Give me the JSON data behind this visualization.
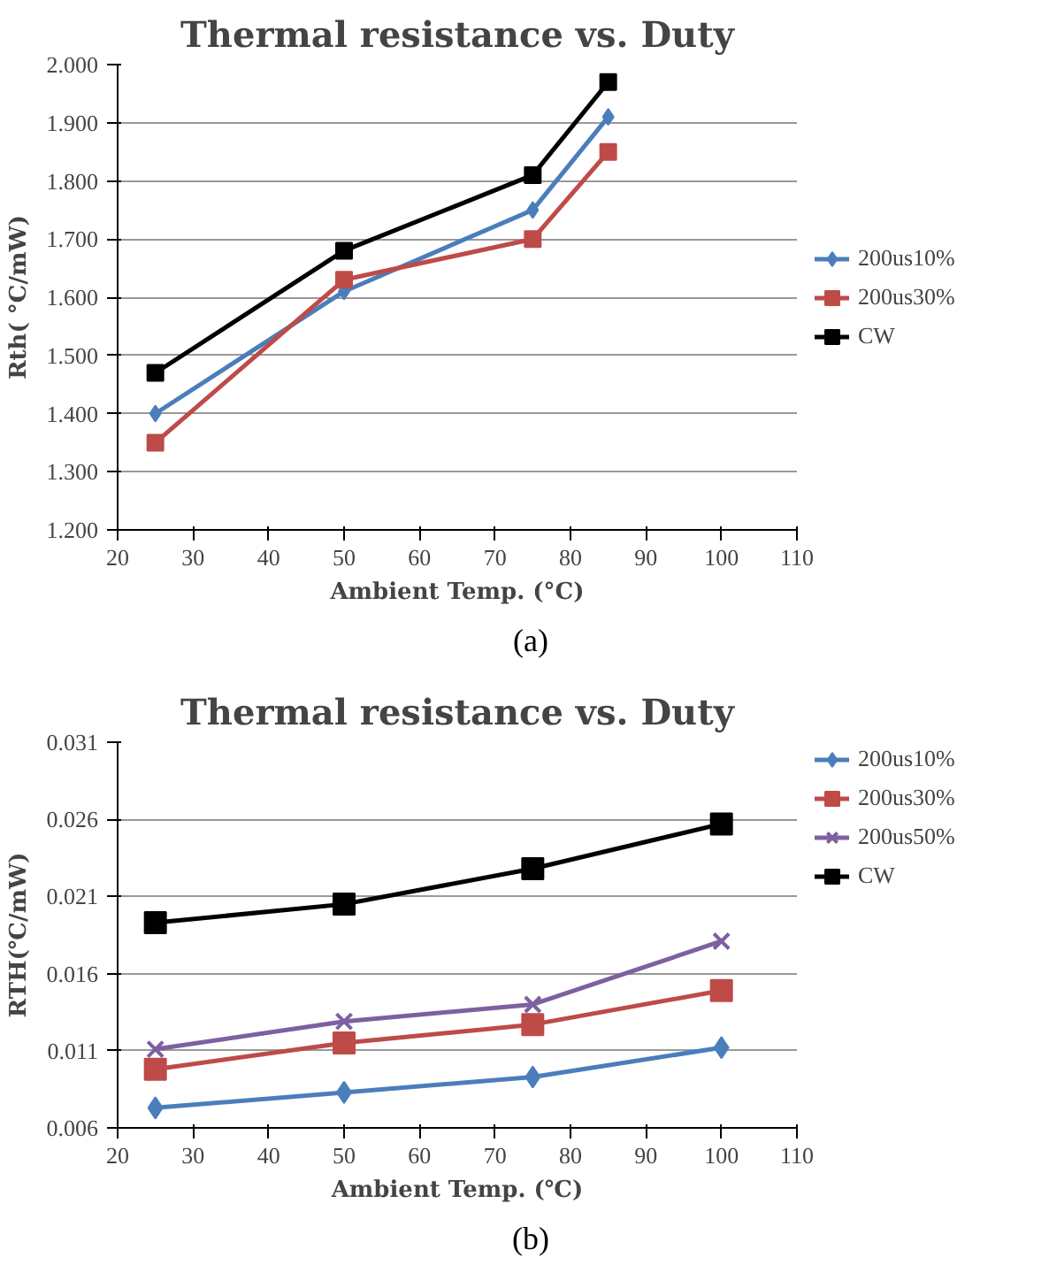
{
  "chart_data": [
    {
      "type": "line",
      "title": "Thermal resistance vs. Duty",
      "xlabel": "Ambient Temp. (°C)",
      "ylabel": "Rth( °C/mW)",
      "x": [
        25,
        50,
        75,
        85
      ],
      "series": [
        {
          "name": "200us10%",
          "color": "#4a7ebb",
          "marker": "diamond",
          "values": [
            1.4,
            1.61,
            1.75,
            1.91
          ]
        },
        {
          "name": "200us30%",
          "color": "#be4b48",
          "marker": "square",
          "values": [
            1.35,
            1.63,
            1.7,
            1.85
          ]
        },
        {
          "name": "CW",
          "color": "#000000",
          "marker": "square",
          "values": [
            1.47,
            1.68,
            1.81,
            1.97
          ]
        }
      ],
      "xlim": [
        20,
        110
      ],
      "xticks": [
        20,
        30,
        40,
        50,
        60,
        70,
        80,
        90,
        100,
        110
      ],
      "ylim": [
        1.2,
        2.0
      ],
      "yticks": [
        {
          "value": 1.2,
          "label": "1.200"
        },
        {
          "value": 1.3,
          "label": "1.300"
        },
        {
          "value": 1.4,
          "label": "1.400"
        },
        {
          "value": 1.5,
          "label": "1.500"
        },
        {
          "value": 1.6,
          "label": "1.600"
        },
        {
          "value": 1.7,
          "label": "1.700"
        },
        {
          "value": 1.8,
          "label": "1.800"
        },
        {
          "value": 1.9,
          "label": "1.900"
        },
        {
          "value": 2.0,
          "label": "2.000"
        }
      ],
      "grid": "y",
      "legend": "right",
      "annotations": [
        "(a)"
      ]
    },
    {
      "type": "line",
      "title": "Thermal resistance vs. Duty",
      "xlabel": "Ambient Temp. (℃)",
      "ylabel": "RTH(℃/mW)",
      "x": [
        25,
        50,
        75,
        100
      ],
      "series": [
        {
          "name": "200us10%",
          "color": "#4a7ebb",
          "marker": "diamond",
          "values": [
            0.0073,
            0.0083,
            0.0093,
            0.0112
          ]
        },
        {
          "name": "200us30%",
          "color": "#be4b48",
          "marker": "square",
          "values": [
            0.0098,
            0.0115,
            0.0127,
            0.0149
          ]
        },
        {
          "name": "200us50%",
          "color": "#7d60a0",
          "marker": "cross",
          "values": [
            0.0111,
            0.0129,
            0.014,
            0.0181
          ]
        },
        {
          "name": "CW",
          "color": "#000000",
          "marker": "square",
          "values": [
            0.0193,
            0.0205,
            0.0228,
            0.0257
          ]
        }
      ],
      "xlim": [
        20,
        110
      ],
      "xticks": [
        20,
        30,
        40,
        50,
        60,
        70,
        80,
        90,
        100,
        110
      ],
      "ylim": [
        0.006,
        0.031
      ],
      "yticks": [
        0.006,
        0.011,
        0.016,
        0.021,
        0.026,
        0.031
      ],
      "grid": "y",
      "legend": "top right",
      "annotations": [
        "(b)"
      ]
    }
  ]
}
